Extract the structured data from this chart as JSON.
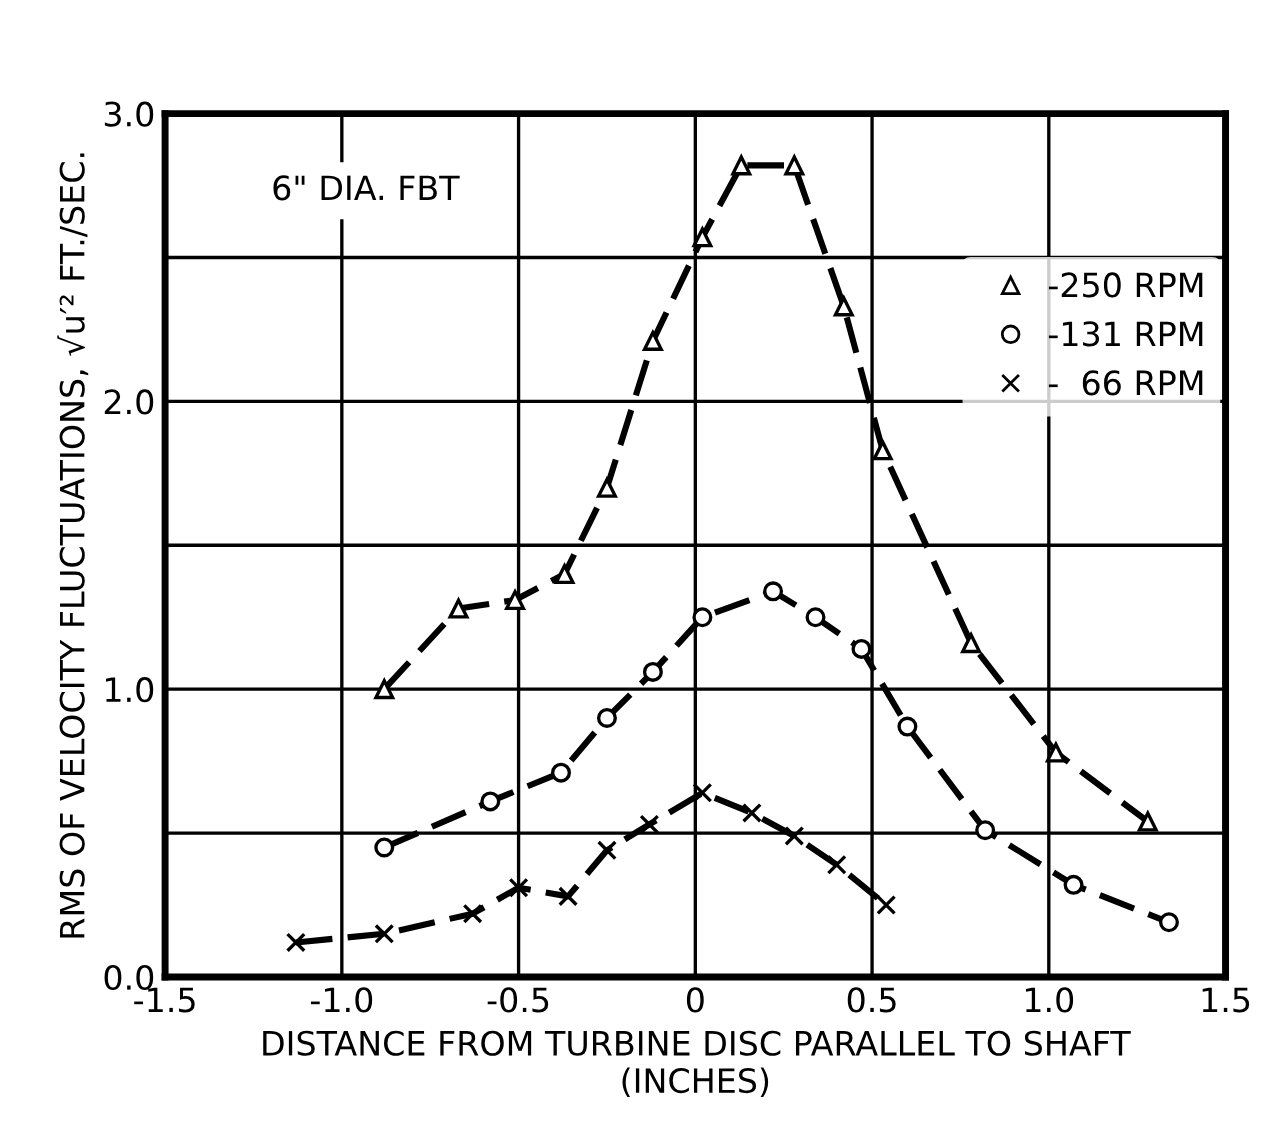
{
  "chart_data": {
    "type": "line",
    "xlabel": "DISTANCE FROM TURBINE DISC PARALLEL TO SHAFT\n(INCHES)",
    "ylabel": "RMS OF VELOCITY FLUCTUATIONS, √u′² FT./SEC.",
    "annotations": [
      "6\" DIA. FBT"
    ],
    "xlim": [
      -1.5,
      1.5
    ],
    "xticks": [
      -1.5,
      {
        "value": -1,
        "label": "-1.0"
      },
      -0.5,
      {
        "value": 0,
        "label": "0"
      },
      0.5,
      {
        "value": 1,
        "label": "1.0"
      },
      1.5
    ],
    "ylim": [
      0,
      3.0
    ],
    "yticks": [
      {
        "value": 0,
        "label": "0.0"
      },
      {
        "value": 0.5,
        "label": null
      },
      {
        "value": 1,
        "label": "1.0"
      },
      {
        "value": 1.5,
        "label": null
      },
      {
        "value": 2,
        "label": "2.0"
      },
      {
        "value": 2.5,
        "label": null
      },
      {
        "value": 3,
        "label": "3.0"
      }
    ],
    "grid": true,
    "legend": "top right",
    "line_style": "dashed",
    "series": [
      {
        "name": "-250 RPM",
        "color": "#000000",
        "marker": "triangle",
        "x": [
          -0.88,
          -0.67,
          -0.51,
          -0.37,
          -0.25,
          -0.12,
          0.02,
          0.13,
          0.28,
          0.42,
          0.53,
          0.78,
          1.02,
          1.28
        ],
        "values": [
          1.0,
          1.28,
          1.31,
          1.4,
          1.7,
          2.21,
          2.57,
          2.82,
          2.82,
          2.33,
          1.83,
          1.16,
          0.78,
          0.54
        ]
      },
      {
        "name": "-131 RPM",
        "color": "#000000",
        "marker": "circle",
        "x": [
          -0.88,
          -0.58,
          -0.38,
          -0.25,
          -0.12,
          0.02,
          0.22,
          0.34,
          0.47,
          0.6,
          0.82,
          1.07,
          1.34
        ],
        "values": [
          0.45,
          0.61,
          0.71,
          0.9,
          1.06,
          1.25,
          1.34,
          1.25,
          1.14,
          0.87,
          0.51,
          0.32,
          0.19
        ]
      },
      {
        "name": "-  66 RPM",
        "color": "#000000",
        "marker": "cross",
        "x": [
          -1.13,
          -0.88,
          -0.63,
          -0.5,
          -0.36,
          -0.25,
          -0.13,
          0.02,
          0.16,
          0.28,
          0.4,
          0.54
        ],
        "values": [
          0.12,
          0.15,
          0.22,
          0.31,
          0.28,
          0.44,
          0.53,
          0.64,
          0.57,
          0.49,
          0.39,
          0.25
        ]
      }
    ]
  }
}
